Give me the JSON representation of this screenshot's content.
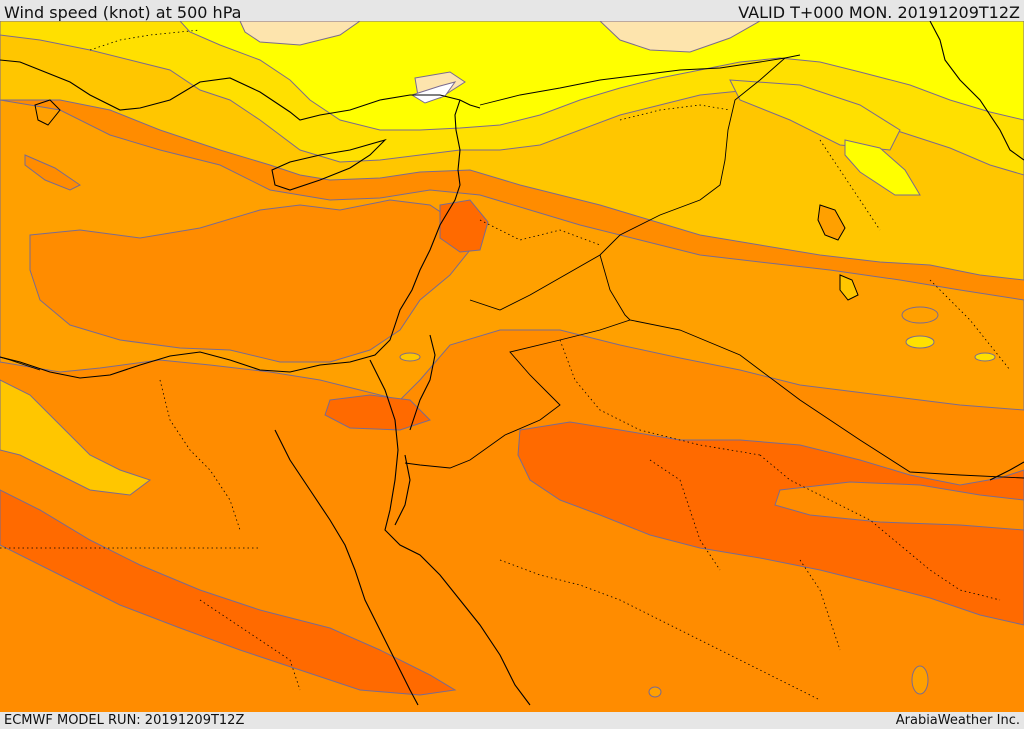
{
  "header": {
    "title": "Wind speed (knot) at 500 hPa",
    "valid": "VALID T+000 MON. 20191209T12Z"
  },
  "footer": {
    "model_run": "ECMWF MODEL RUN: 20191209T12Z",
    "credit": "ArabiaWeather Inc."
  },
  "map": {
    "palette": {
      "lightest": "#fde4ad",
      "yellow": "#ffff00",
      "gold": "#ffe000",
      "amber": "#ffc600",
      "orange_light": "#ffa000",
      "orange": "#ff8c00",
      "orange_dark": "#ff6a00",
      "contour": "#7a6b8f",
      "border": "#000000"
    }
  }
}
